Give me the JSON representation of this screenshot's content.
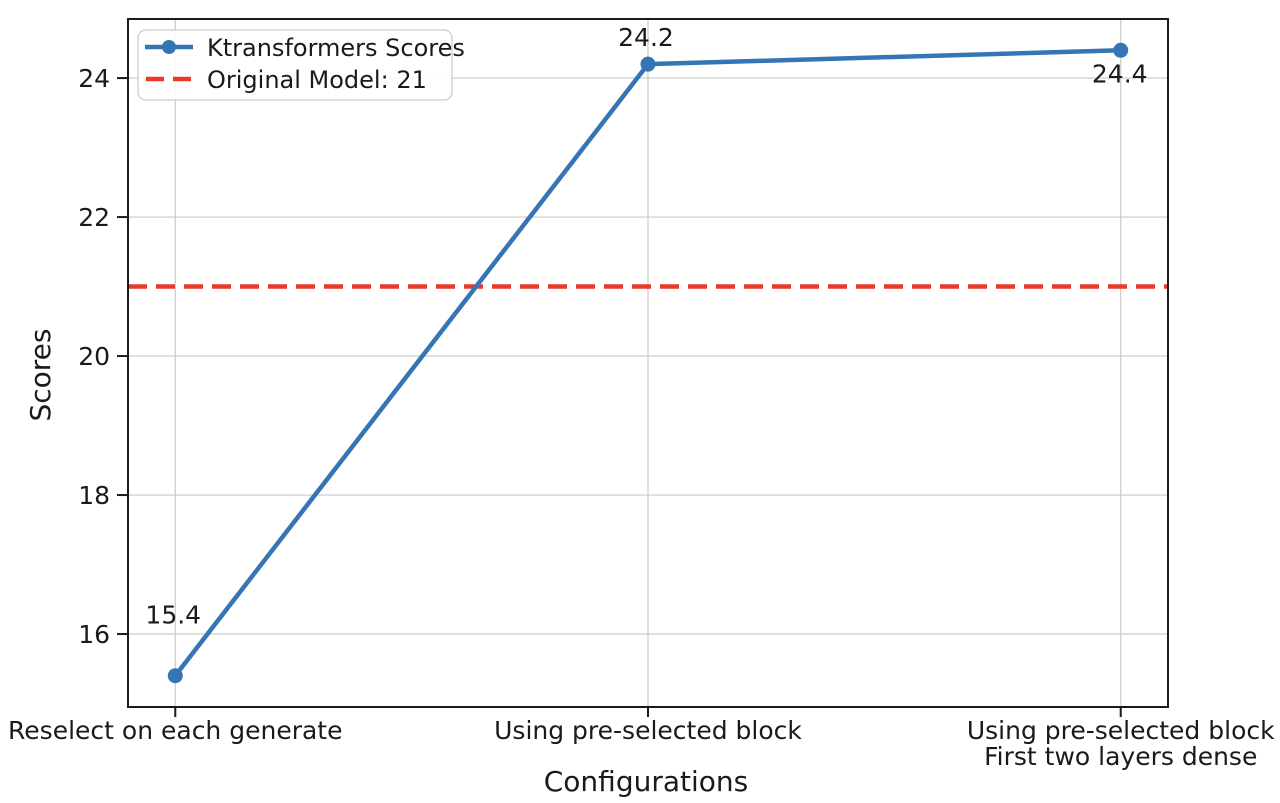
{
  "chart_data": {
    "type": "line",
    "title": "",
    "xlabel": "Configurations",
    "ylabel": "Scores",
    "categories": [
      "Reselect on each generate",
      "Using pre-selected block",
      "Using pre-selected block\nFirst two layers dense"
    ],
    "series": [
      {
        "name": "Ktransformers Scores",
        "values": [
          15.4,
          24.2,
          24.4
        ],
        "labels": [
          "15.4",
          "24.2",
          "24.4"
        ],
        "color": "#3575b5",
        "marker": "circle",
        "line_style": "solid"
      }
    ],
    "reference_line": {
      "label": "Original Model: 21",
      "value": 21,
      "color": "#e93a2b",
      "line_style": "dashed"
    },
    "yticks": [
      "16",
      "18",
      "20",
      "22",
      "24"
    ],
    "ytick_values": [
      16,
      18,
      20,
      22,
      24
    ],
    "ylim": [
      14.95,
      24.85
    ],
    "grid": true,
    "legend_position": "upper-left"
  },
  "colors": {
    "grid": "#c9c9c9",
    "spine": "#1a1a1a",
    "text": "#1a1a1a",
    "legend_border": "#cccccc",
    "background": "#ffffff"
  }
}
